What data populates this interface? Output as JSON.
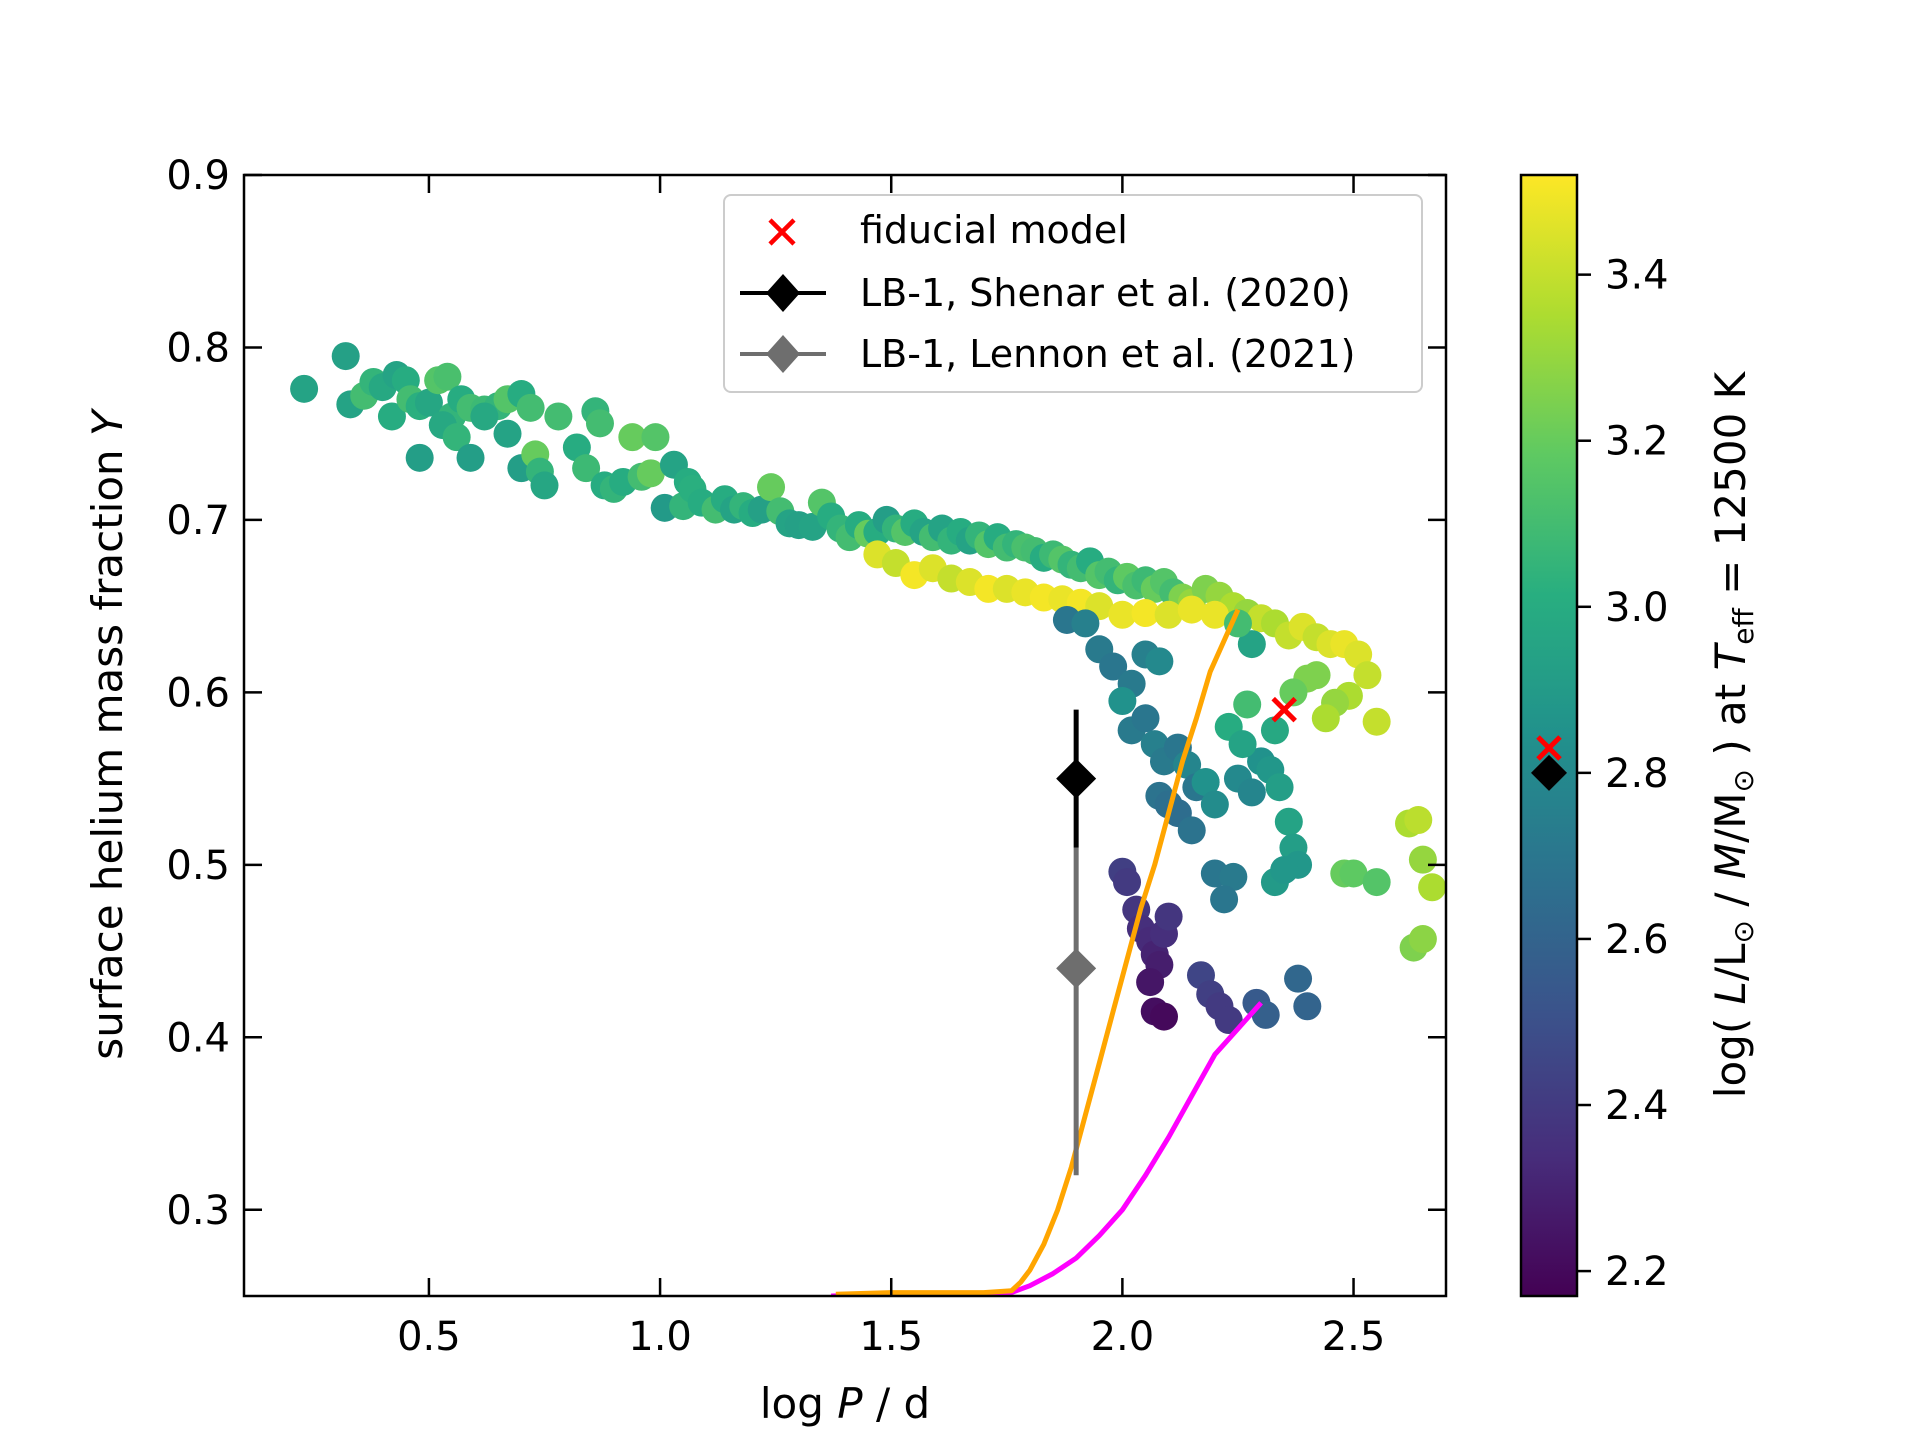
{
  "chart_data": {
    "type": "scatter",
    "xlabel_parts": [
      "log ",
      "P",
      " / d"
    ],
    "ylabel_parts": [
      "surface helium mass fraction ",
      "Y"
    ],
    "colorbar_label_parts": [
      "log( ",
      "L",
      "/L",
      "⊙",
      " / ",
      "M",
      "/M",
      "⊙",
      " ) at ",
      "T",
      "eff",
      " = 12500 K"
    ],
    "xlim": [
      0.1,
      2.7
    ],
    "ylim": [
      0.25,
      0.9
    ],
    "clim": [
      2.17,
      3.52
    ],
    "x_ticks": [
      0.5,
      1.0,
      1.5,
      2.0,
      2.5
    ],
    "x_tick_labels": [
      "0.5",
      "1.0",
      "1.5",
      "2.0",
      "2.5"
    ],
    "y_ticks": [
      0.3,
      0.4,
      0.5,
      0.6,
      0.7,
      0.8,
      0.9
    ],
    "y_tick_labels": [
      "0.3",
      "0.4",
      "0.5",
      "0.6",
      "0.7",
      "0.8",
      "0.9"
    ],
    "c_ticks": [
      2.2,
      2.4,
      2.6,
      2.8,
      3.0,
      3.2,
      3.4
    ],
    "c_tick_labels": [
      "2.2",
      "2.4",
      "2.6",
      "2.8",
      "3.0",
      "3.2",
      "3.4"
    ],
    "colors": {
      "colormap": "viridis",
      "fiducial": "#ff0000",
      "shenar": "#000000",
      "lennon": "#6e6e6e",
      "orange_track": "#ffa500",
      "magenta_track": "#ff00ff"
    },
    "legend": [
      {
        "label": "fiducial model",
        "marker": "x"
      },
      {
        "label": "LB-1, Shenar et al. (2020)",
        "marker": "diamond-errorbar"
      },
      {
        "label": "LB-1, Lennon et al. (2021)",
        "marker": "diamond-errorbar"
      }
    ],
    "points": [
      [
        0.23,
        0.776,
        2.95
      ],
      [
        0.32,
        0.795,
        2.93
      ],
      [
        0.33,
        0.767,
        2.95
      ],
      [
        0.36,
        0.772,
        3.1
      ],
      [
        0.38,
        0.78,
        3.05
      ],
      [
        0.4,
        0.777,
        2.98
      ],
      [
        0.43,
        0.784,
        2.95
      ],
      [
        0.45,
        0.781,
        3.0
      ],
      [
        0.42,
        0.76,
        3.0
      ],
      [
        0.46,
        0.77,
        3.1
      ],
      [
        0.48,
        0.766,
        3.02
      ],
      [
        0.5,
        0.768,
        2.97
      ],
      [
        0.52,
        0.781,
        3.15
      ],
      [
        0.54,
        0.783,
        3.12
      ],
      [
        0.55,
        0.76,
        3.05
      ],
      [
        0.57,
        0.77,
        3.0
      ],
      [
        0.59,
        0.765,
        3.1
      ],
      [
        0.62,
        0.764,
        3.08
      ],
      [
        0.65,
        0.766,
        3.05
      ],
      [
        0.67,
        0.77,
        3.15
      ],
      [
        0.7,
        0.773,
        3.0
      ],
      [
        0.72,
        0.765,
        3.1
      ],
      [
        0.48,
        0.736,
        2.92
      ],
      [
        0.53,
        0.755,
        2.98
      ],
      [
        0.56,
        0.748,
        3.05
      ],
      [
        0.59,
        0.736,
        2.92
      ],
      [
        0.62,
        0.76,
        2.98
      ],
      [
        0.67,
        0.75,
        2.95
      ],
      [
        0.7,
        0.73,
        2.92
      ],
      [
        0.73,
        0.738,
        3.2
      ],
      [
        0.74,
        0.728,
        3.05
      ],
      [
        0.75,
        0.72,
        2.97
      ],
      [
        0.78,
        0.76,
        3.1
      ],
      [
        0.82,
        0.742,
        3.0
      ],
      [
        0.84,
        0.73,
        3.08
      ],
      [
        0.86,
        0.763,
        3.05
      ],
      [
        0.87,
        0.756,
        3.1
      ],
      [
        0.88,
        0.72,
        3.0
      ],
      [
        0.9,
        0.718,
        3.05
      ],
      [
        0.92,
        0.722,
        3.0
      ],
      [
        0.94,
        0.748,
        3.2
      ],
      [
        0.96,
        0.725,
        3.1
      ],
      [
        0.98,
        0.727,
        3.2
      ],
      [
        0.99,
        0.748,
        3.15
      ],
      [
        1.01,
        0.707,
        2.9
      ],
      [
        1.03,
        0.732,
        2.95
      ],
      [
        1.05,
        0.708,
        3.05
      ],
      [
        1.06,
        0.722,
        3.0
      ],
      [
        1.07,
        0.718,
        3.02
      ],
      [
        1.09,
        0.71,
        3.0
      ],
      [
        1.12,
        0.706,
        3.1
      ],
      [
        1.14,
        0.712,
        3.0
      ],
      [
        1.16,
        0.706,
        2.95
      ],
      [
        1.18,
        0.708,
        3.05
      ],
      [
        1.2,
        0.704,
        3.0
      ],
      [
        1.22,
        0.706,
        2.93
      ],
      [
        1.24,
        0.719,
        3.2
      ],
      [
        1.26,
        0.705,
        3.1
      ],
      [
        1.28,
        0.698,
        2.95
      ],
      [
        1.3,
        0.697,
        2.93
      ],
      [
        1.33,
        0.696,
        2.95
      ],
      [
        1.35,
        0.71,
        3.15
      ],
      [
        1.37,
        0.702,
        3.0
      ],
      [
        1.39,
        0.695,
        3.05
      ],
      [
        1.41,
        0.69,
        3.1
      ],
      [
        1.43,
        0.697,
        3.0
      ],
      [
        1.45,
        0.692,
        3.2
      ],
      [
        1.47,
        0.693,
        3.0
      ],
      [
        1.49,
        0.7,
        2.92
      ],
      [
        1.51,
        0.695,
        3.05
      ],
      [
        1.53,
        0.693,
        3.15
      ],
      [
        1.55,
        0.698,
        3.0
      ],
      [
        1.57,
        0.693,
        2.95
      ],
      [
        1.59,
        0.69,
        3.1
      ],
      [
        1.61,
        0.695,
        2.95
      ],
      [
        1.63,
        0.688,
        3.05
      ],
      [
        1.65,
        0.693,
        3.0
      ],
      [
        1.67,
        0.688,
        2.95
      ],
      [
        1.69,
        0.691,
        3.05
      ],
      [
        1.71,
        0.686,
        3.15
      ],
      [
        1.73,
        0.69,
        3.0
      ],
      [
        1.75,
        0.684,
        3.1
      ],
      [
        1.77,
        0.686,
        3.05
      ],
      [
        1.79,
        0.684,
        3.12
      ],
      [
        1.81,
        0.682,
        3.1
      ],
      [
        1.83,
        0.678,
        3.0
      ],
      [
        1.85,
        0.68,
        3.08
      ],
      [
        1.87,
        0.677,
        3.15
      ],
      [
        1.89,
        0.674,
        3.05
      ],
      [
        1.91,
        0.672,
        3.1
      ],
      [
        1.93,
        0.676,
        3.0
      ],
      [
        1.95,
        0.668,
        3.15
      ],
      [
        1.97,
        0.67,
        3.1
      ],
      [
        1.99,
        0.665,
        3.05
      ],
      [
        2.01,
        0.667,
        3.18
      ],
      [
        2.03,
        0.662,
        3.12
      ],
      [
        2.05,
        0.665,
        3.08
      ],
      [
        2.07,
        0.66,
        3.2
      ],
      [
        2.09,
        0.664,
        3.15
      ],
      [
        2.11,
        0.658,
        3.1
      ],
      [
        2.13,
        0.655,
        3.25
      ],
      [
        2.15,
        0.652,
        3.3
      ],
      [
        2.18,
        0.66,
        3.25
      ],
      [
        2.21,
        0.656,
        3.3
      ],
      [
        2.24,
        0.65,
        3.35
      ],
      [
        2.27,
        0.646,
        3.3
      ],
      [
        2.3,
        0.643,
        3.4
      ],
      [
        2.33,
        0.64,
        3.35
      ],
      [
        2.36,
        0.633,
        3.4
      ],
      [
        2.39,
        0.638,
        3.45
      ],
      [
        2.42,
        0.632,
        3.4
      ],
      [
        2.45,
        0.628,
        3.45
      ],
      [
        2.48,
        0.628,
        3.48
      ],
      [
        2.51,
        0.622,
        3.45
      ],
      [
        2.53,
        0.61,
        3.4
      ],
      [
        2.55,
        0.583,
        3.4
      ],
      [
        2.49,
        0.598,
        3.35
      ],
      [
        2.46,
        0.594,
        3.3
      ],
      [
        2.44,
        0.585,
        3.35
      ],
      [
        2.4,
        0.608,
        3.25
      ],
      [
        2.37,
        0.6,
        3.2
      ],
      [
        2.42,
        0.61,
        3.25
      ],
      [
        1.47,
        0.68,
        3.45
      ],
      [
        1.51,
        0.675,
        3.4
      ],
      [
        1.55,
        0.668,
        3.5
      ],
      [
        1.59,
        0.672,
        3.45
      ],
      [
        1.63,
        0.666,
        3.4
      ],
      [
        1.67,
        0.664,
        3.45
      ],
      [
        1.71,
        0.66,
        3.5
      ],
      [
        1.75,
        0.66,
        3.45
      ],
      [
        1.79,
        0.658,
        3.48
      ],
      [
        1.83,
        0.655,
        3.5
      ],
      [
        1.87,
        0.654,
        3.48
      ],
      [
        1.91,
        0.652,
        3.5
      ],
      [
        1.95,
        0.65,
        3.45
      ],
      [
        2.0,
        0.645,
        3.48
      ],
      [
        2.05,
        0.646,
        3.5
      ],
      [
        2.1,
        0.645,
        3.45
      ],
      [
        2.15,
        0.648,
        3.48
      ],
      [
        2.2,
        0.645,
        3.48
      ],
      [
        1.88,
        0.642,
        2.7
      ],
      [
        1.92,
        0.64,
        2.75
      ],
      [
        1.95,
        0.625,
        2.72
      ],
      [
        1.98,
        0.615,
        2.7
      ],
      [
        2.02,
        0.605,
        2.72
      ],
      [
        2.05,
        0.622,
        2.75
      ],
      [
        2.08,
        0.618,
        2.8
      ],
      [
        2.0,
        0.595,
        2.85
      ],
      [
        2.02,
        0.578,
        2.72
      ],
      [
        2.05,
        0.585,
        2.7
      ],
      [
        2.07,
        0.57,
        2.75
      ],
      [
        2.09,
        0.56,
        2.72
      ],
      [
        2.12,
        0.568,
        2.7
      ],
      [
        2.14,
        0.558,
        2.78
      ],
      [
        2.16,
        0.545,
        2.7
      ],
      [
        2.18,
        0.548,
        2.72
      ],
      [
        2.08,
        0.54,
        2.68
      ],
      [
        2.1,
        0.535,
        2.66
      ],
      [
        2.12,
        0.53,
        2.65
      ],
      [
        2.15,
        0.52,
        2.68
      ],
      [
        2.18,
        0.548,
        2.85
      ],
      [
        2.2,
        0.535,
        2.82
      ],
      [
        2.25,
        0.55,
        2.8
      ],
      [
        2.28,
        0.542,
        2.78
      ],
      [
        2.3,
        0.56,
        2.85
      ],
      [
        2.32,
        0.555,
        2.88
      ],
      [
        2.34,
        0.545,
        2.92
      ],
      [
        2.36,
        0.525,
        2.95
      ],
      [
        2.37,
        0.51,
        2.92
      ],
      [
        2.38,
        0.5,
        2.88
      ],
      [
        2.33,
        0.49,
        2.9
      ],
      [
        2.35,
        0.497,
        2.88
      ],
      [
        2.2,
        0.495,
        2.7
      ],
      [
        2.24,
        0.493,
        2.72
      ],
      [
        2.0,
        0.496,
        2.42
      ],
      [
        2.01,
        0.49,
        2.4
      ],
      [
        2.03,
        0.474,
        2.38
      ],
      [
        2.04,
        0.463,
        2.35
      ],
      [
        2.06,
        0.456,
        2.33
      ],
      [
        2.07,
        0.448,
        2.3
      ],
      [
        2.08,
        0.442,
        2.28
      ],
      [
        2.09,
        0.46,
        2.35
      ],
      [
        2.1,
        0.47,
        2.38
      ],
      [
        2.06,
        0.432,
        2.25
      ],
      [
        2.07,
        0.415,
        2.22
      ],
      [
        2.09,
        0.412,
        2.2
      ],
      [
        2.17,
        0.436,
        2.45
      ],
      [
        2.19,
        0.425,
        2.42
      ],
      [
        2.21,
        0.418,
        2.4
      ],
      [
        2.23,
        0.41,
        2.4
      ],
      [
        2.29,
        0.42,
        2.55
      ],
      [
        2.31,
        0.413,
        2.58
      ],
      [
        2.38,
        0.434,
        2.62
      ],
      [
        2.4,
        0.418,
        2.6
      ],
      [
        2.22,
        0.48,
        2.7
      ],
      [
        2.48,
        0.495,
        3.2
      ],
      [
        2.5,
        0.495,
        3.18
      ],
      [
        2.55,
        0.49,
        3.15
      ],
      [
        2.62,
        0.524,
        3.35
      ],
      [
        2.64,
        0.526,
        3.38
      ],
      [
        2.65,
        0.503,
        3.3
      ],
      [
        2.67,
        0.487,
        3.35
      ],
      [
        2.63,
        0.452,
        3.25
      ],
      [
        2.65,
        0.457,
        3.28
      ],
      [
        2.27,
        0.593,
        3.1
      ],
      [
        2.23,
        0.58,
        3.0
      ],
      [
        2.26,
        0.57,
        2.95
      ],
      [
        2.33,
        0.578,
        2.98
      ],
      [
        2.28,
        0.628,
        2.95
      ],
      [
        2.25,
        0.64,
        3.1
      ]
    ],
    "orange_track": {
      "x": [
        1.38,
        1.5,
        1.6,
        1.7,
        1.76,
        1.78,
        1.8,
        1.83,
        1.86,
        1.89,
        1.92,
        1.95,
        1.98,
        2.01,
        2.04,
        2.07,
        2.1,
        2.13,
        2.16,
        2.19,
        2.22,
        2.25
      ],
      "y": [
        0.251,
        0.252,
        0.252,
        0.252,
        0.253,
        0.258,
        0.265,
        0.28,
        0.3,
        0.325,
        0.355,
        0.385,
        0.415,
        0.445,
        0.475,
        0.5,
        0.53,
        0.56,
        0.585,
        0.612,
        0.63,
        0.648
      ]
    },
    "magenta_track": {
      "x": [
        1.37,
        1.5,
        1.6,
        1.7,
        1.76,
        1.8,
        1.85,
        1.9,
        1.95,
        2.0,
        2.05,
        2.1,
        2.15,
        2.2,
        2.25,
        2.3
      ],
      "y": [
        0.25,
        0.251,
        0.251,
        0.251,
        0.252,
        0.256,
        0.263,
        0.272,
        0.285,
        0.3,
        0.32,
        0.342,
        0.366,
        0.39,
        0.405,
        0.42
      ]
    },
    "fiducial": {
      "x": 2.35,
      "y": 0.59,
      "c": 2.83
    },
    "shenar": {
      "x": 1.9,
      "y": 0.55,
      "yerr_low": 0.51,
      "yerr_high": 0.59,
      "c": 2.8
    },
    "lennon": {
      "x": 1.9,
      "y": 0.44,
      "yerr_low": 0.32,
      "yerr_high": 0.51,
      "c": 2.8
    }
  }
}
